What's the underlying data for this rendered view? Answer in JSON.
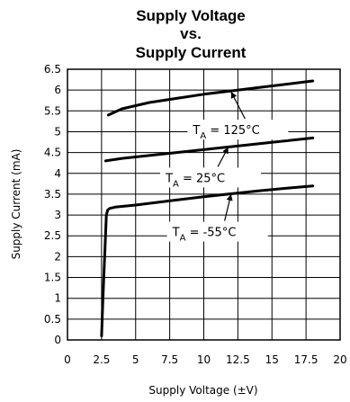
{
  "chart_data": {
    "type": "line",
    "title_lines": [
      "Supply Voltage",
      "vs.",
      "Supply Current"
    ],
    "xlabel": "Supply Voltage (±V)",
    "ylabel": "Supply Current (mA)",
    "xlim": [
      0,
      20
    ],
    "ylim": [
      0,
      6.5
    ],
    "x_ticks": [
      "0",
      "2.5",
      "5",
      "7.5",
      "10",
      "12.5",
      "15",
      "17.5",
      "20"
    ],
    "y_ticks": [
      "0",
      "0.5",
      "1",
      "1.5",
      "2",
      "2.5",
      "3",
      "3.5",
      "4",
      "4.5",
      "5",
      "5.5",
      "6",
      "6.5"
    ],
    "grid": true,
    "series": [
      {
        "x": [
          3,
          4,
          6,
          8,
          10,
          12,
          14,
          16,
          18
        ],
        "y": [
          5.4,
          5.55,
          5.7,
          5.8,
          5.9,
          5.98,
          6.06,
          6.14,
          6.22
        ]
      },
      {
        "x": [
          2.8,
          4,
          6,
          8,
          10,
          12,
          14,
          16,
          18
        ],
        "y": [
          4.3,
          4.36,
          4.43,
          4.5,
          4.57,
          4.64,
          4.71,
          4.78,
          4.85
        ]
      },
      {
        "x": [
          2.5,
          2.6,
          2.75,
          2.85,
          2.95,
          3.1,
          3.5,
          5,
          8,
          10,
          12,
          14,
          16,
          18
        ],
        "y": [
          0.1,
          1.0,
          2.2,
          3.0,
          3.12,
          3.16,
          3.19,
          3.24,
          3.36,
          3.44,
          3.51,
          3.58,
          3.64,
          3.7
        ]
      }
    ],
    "annotations": [
      {
        "text": "T",
        "sub": "A",
        "rest": " = 125°C",
        "at_x": 12.5,
        "at_y": 5.05,
        "point_x": 12.0,
        "point_y": 5.96
      },
      {
        "text": "T",
        "sub": "A",
        "rest": " = 25°C",
        "at_x": 10.5,
        "at_y": 3.9,
        "point_x": 11.8,
        "point_y": 4.63
      },
      {
        "text": "T",
        "sub": "A",
        "rest": " = -55°C",
        "at_x": 11.0,
        "at_y": 2.6,
        "point_x": 12.0,
        "point_y": 3.5
      }
    ]
  }
}
